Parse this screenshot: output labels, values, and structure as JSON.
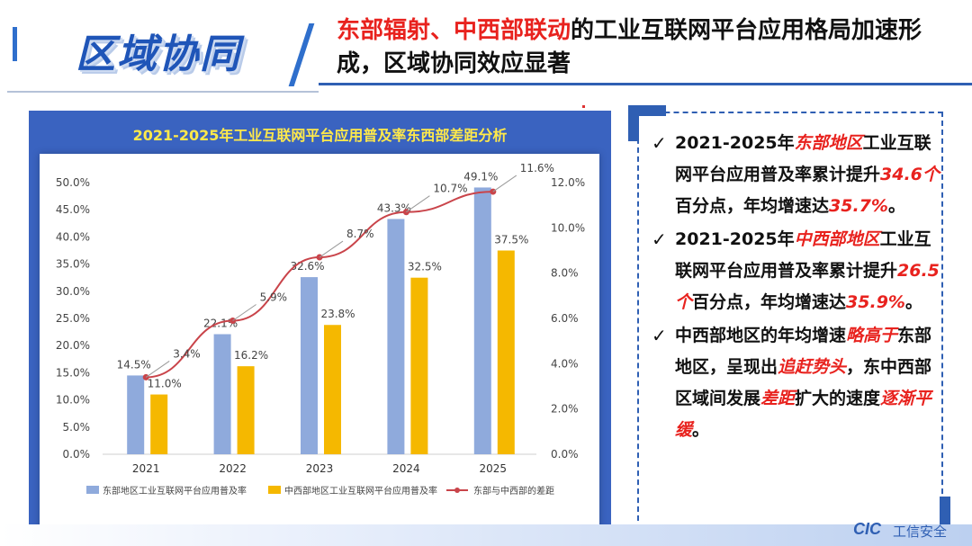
{
  "header": {
    "badge_title": "区域协同",
    "headline_part1": "东部辐射、中西部联动",
    "headline_part2": "的工业互联网平台应用格局加速形成，区域协同效应显著"
  },
  "chart_data": {
    "type": "bar",
    "title": "2021-2025年工业互联网平台应用普及率东西部差距分析",
    "categories": [
      "2021",
      "2022",
      "2023",
      "2024",
      "2025"
    ],
    "series": [
      {
        "name": "东部地区工业互联网平台应用普及率",
        "values": [
          14.5,
          22.1,
          32.6,
          43.3,
          49.1
        ],
        "labels": [
          "14.5%",
          "22.1%",
          "32.6%",
          "43.3%",
          "49.1%"
        ],
        "color": "#8faadc",
        "axis": "left"
      },
      {
        "name": "中西部地区工业互联网平台应用普及率",
        "values": [
          11.0,
          16.2,
          23.8,
          32.5,
          37.5
        ],
        "labels": [
          "11.0%",
          "16.2%",
          "23.8%",
          "32.5%",
          "37.5%"
        ],
        "color": "#f5b800",
        "axis": "left"
      },
      {
        "name": "东部与中西部的差距",
        "type": "line",
        "values": [
          3.4,
          5.9,
          8.7,
          10.7,
          11.6
        ],
        "labels": [
          "3.4%",
          "5.9%",
          "8.7%",
          "10.7%",
          "11.6%"
        ],
        "color": "#c9444a",
        "axis": "right"
      }
    ],
    "y_left": {
      "min": 0,
      "max": 50,
      "ticks": [
        "0.0%",
        "5.0%",
        "10.0%",
        "15.0%",
        "20.0%",
        "25.0%",
        "30.0%",
        "35.0%",
        "40.0%",
        "45.0%",
        "50.0%"
      ]
    },
    "y_right": {
      "min": 0,
      "max": 12,
      "ticks": [
        "0.0%",
        "2.0%",
        "4.0%",
        "6.0%",
        "8.0%",
        "10.0%",
        "12.0%"
      ]
    },
    "legend_position": "bottom",
    "grid": false
  },
  "bullets": [
    {
      "check": "✓",
      "parts": [
        [
          "2021-2025年",
          false
        ],
        [
          "东部地区",
          true
        ],
        [
          "工业互联网平台应用普及率累计提升",
          false
        ],
        [
          "34.6个",
          true
        ],
        [
          "百分点，年均增速达",
          false
        ],
        [
          "35.7%",
          true
        ],
        [
          "。",
          false
        ]
      ]
    },
    {
      "check": "✓",
      "parts": [
        [
          "2021-2025年",
          false
        ],
        [
          "中西部地区",
          true
        ],
        [
          "工业互联网平台应用普及率累计提升",
          false
        ],
        [
          "26.5个",
          true
        ],
        [
          "百分点，年均增速达",
          false
        ],
        [
          "35.9%",
          true
        ],
        [
          "。",
          false
        ]
      ]
    },
    {
      "check": "✓",
      "parts": [
        [
          "中西部地区的年均增速",
          false
        ],
        [
          "略高于",
          true
        ],
        [
          "东部地区，呈现出",
          false
        ],
        [
          "追赶势头",
          true
        ],
        [
          "，东中西部区域间发展",
          false
        ],
        [
          "差距",
          true
        ],
        [
          "扩大的速度",
          false
        ],
        [
          "逐渐平缓",
          true
        ],
        [
          "。",
          false
        ]
      ]
    }
  ],
  "logo": {
    "mark": "CIC",
    "text": "工信安全"
  }
}
